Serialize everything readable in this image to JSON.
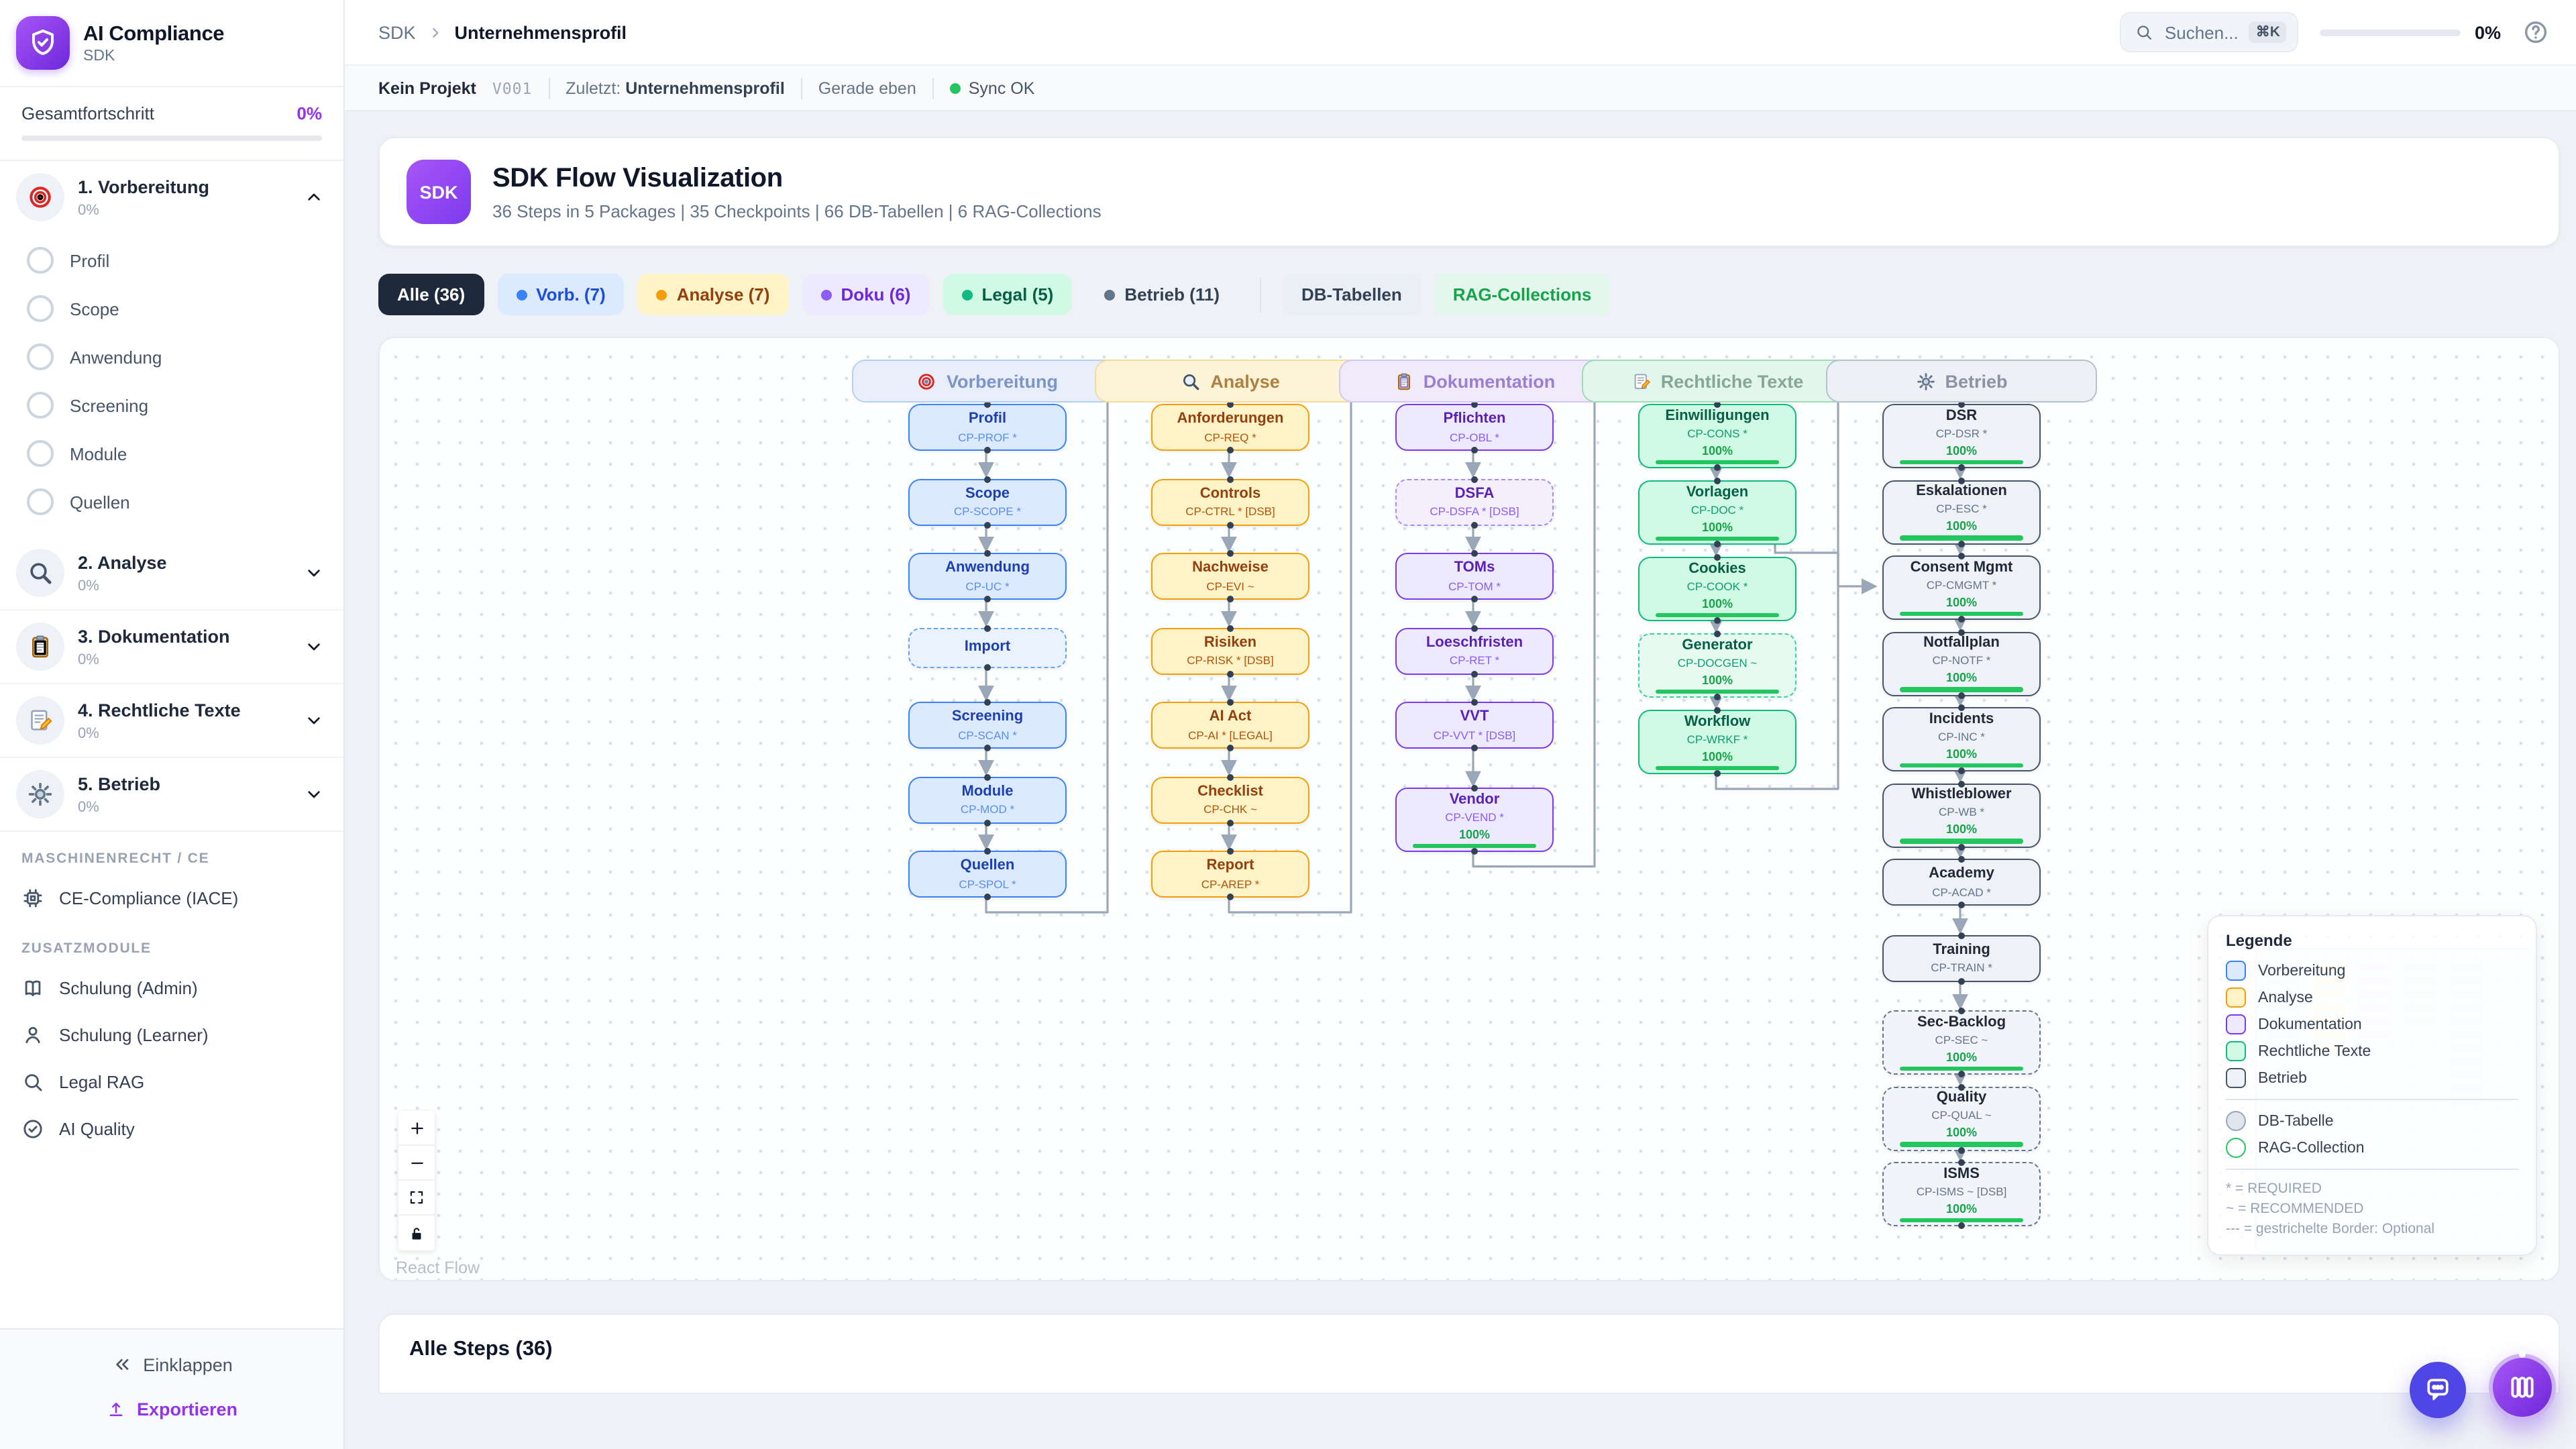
{
  "app": {
    "name": "AI Compliance",
    "subtitle": "SDK",
    "accent": "#7c3aed"
  },
  "topbar": {
    "breadcrumb": {
      "root": "SDK",
      "current": "Unternehmensprofil"
    },
    "search": {
      "placeholder": "Suchen...",
      "shortcut": "⌘K"
    },
    "progress": {
      "value": "0%"
    }
  },
  "statusbar": {
    "project": "Kein Projekt",
    "version": "V001",
    "last_label": "Zuletzt:",
    "last_value": "Unternehmensprofil",
    "ago": "Gerade eben",
    "sync_label": "Sync OK",
    "sync_color": "#22c55e"
  },
  "sidebar": {
    "overall": {
      "label": "Gesamtfortschritt",
      "value": "0%",
      "color": "#9333ea"
    },
    "sections": [
      {
        "icon": "target",
        "label": "1. Vorbereitung",
        "percent": "0%",
        "expanded": true,
        "items": [
          "Profil",
          "Scope",
          "Anwendung",
          "Screening",
          "Module",
          "Quellen"
        ]
      },
      {
        "icon": "magnifier-color",
        "label": "2. Analyse",
        "percent": "0%",
        "expanded": false
      },
      {
        "icon": "clipboard",
        "label": "3. Dokumentation",
        "percent": "0%",
        "expanded": false
      },
      {
        "icon": "memo",
        "label": "4. Rechtliche Texte",
        "percent": "0%",
        "expanded": false
      },
      {
        "icon": "gear",
        "label": "5. Betrieb",
        "percent": "0%",
        "expanded": false
      }
    ],
    "groups": [
      {
        "label": "MASCHINENRECHT / CE",
        "items": [
          {
            "icon": "cpu",
            "label": "CE-Compliance (IACE)"
          }
        ]
      },
      {
        "label": "ZUSATZMODULE",
        "items": [
          {
            "icon": "book",
            "label": "Schulung (Admin)"
          },
          {
            "icon": "person",
            "label": "Schulung (Learner)"
          },
          {
            "icon": "search",
            "label": "Legal RAG"
          },
          {
            "icon": "check-circle",
            "label": "AI Quality"
          }
        ]
      }
    ],
    "footer": {
      "collapse": "Einklappen",
      "export": "Exportieren"
    }
  },
  "header_card": {
    "badge": "SDK",
    "title": "SDK Flow Visualization",
    "subtitle": "36 Steps in 5 Packages | 35 Checkpoints | 66 DB-Tabellen | 6 RAG-Collections"
  },
  "filters": {
    "chips": [
      {
        "label": "Alle (36)",
        "solid": true,
        "bg": "#1e293b",
        "fg": "#ffffff"
      },
      {
        "label": "Vorb. (7)",
        "dot": "#3b82f6",
        "bg": "#dbeafe",
        "fg": "#1d4ed8"
      },
      {
        "label": "Analyse (7)",
        "dot": "#f59e0b",
        "bg": "#fef3c7",
        "fg": "#92400e"
      },
      {
        "label": "Doku (6)",
        "dot": "#8b5cf6",
        "bg": "#ede9fe",
        "fg": "#6d28d9"
      },
      {
        "label": "Legal (5)",
        "dot": "#10b981",
        "bg": "#d1fae5",
        "fg": "#065f46"
      },
      {
        "label": "Betrieb (11)",
        "dot": "#64748b",
        "bg": "#eef2f7",
        "fg": "#334155"
      }
    ],
    "extra": [
      {
        "label": "DB-Tabellen",
        "bg": "#eaeff5",
        "fg": "#334155"
      },
      {
        "label": "RAG-Collections",
        "bg": "#e3f7ec",
        "fg": "#16a34a"
      }
    ]
  },
  "flow": {
    "packages": [
      {
        "id": "vorb",
        "label": "Vorbereitung",
        "icon": "target",
        "hdr_bg": "#e8effb",
        "hdr_border": "#b9cff1",
        "hdr_fg": "#7b95c8",
        "bg": "#dbeafe",
        "border": "#3b82f6",
        "title_fg": "#1e40af",
        "code_fg": "#5b8def",
        "dash_bg": "#eaf2fe",
        "dash_border": "#60a5fa"
      },
      {
        "id": "analyse",
        "label": "Analyse",
        "icon": "magnifier-color",
        "hdr_bg": "#fdf3d6",
        "hdr_border": "#f1dc9e",
        "hdr_fg": "#ad8043",
        "bg": "#fef3c7",
        "border": "#f59e0b",
        "title_fg": "#92400e",
        "code_fg": "#b45309",
        "dash_bg": "#fefae8",
        "dash_border": "#fbbf24"
      },
      {
        "id": "doku",
        "label": "Dokumentation",
        "icon": "clipboard",
        "hdr_bg": "#f0eafb",
        "hdr_border": "#d6c6f2",
        "hdr_fg": "#9a7fd1",
        "bg": "#ede9fe",
        "border": "#7c3aed",
        "title_fg": "#5b21b6",
        "code_fg": "#8b5cf6",
        "dash_bg": "#f4effd",
        "dash_border": "#a78bfa"
      },
      {
        "id": "legal",
        "label": "Rechtliche Texte",
        "icon": "memo",
        "hdr_bg": "#e3f6ec",
        "hdr_border": "#9cdcb8",
        "hdr_fg": "#87a796",
        "bg": "#d1fae5",
        "border": "#10b981",
        "title_fg": "#065f46",
        "code_fg": "#0d9d72",
        "dash_bg": "#e7faf0",
        "dash_border": "#34d399"
      },
      {
        "id": "betrieb",
        "label": "Betrieb",
        "icon": "gear",
        "hdr_bg": "#edf0f4",
        "hdr_border": "#b7c1ce",
        "hdr_fg": "#8b94a3",
        "bg": "#eef2f7",
        "border": "#475569",
        "title_fg": "#1f2937",
        "code_fg": "#64748b",
        "dash_bg": "#f1f5f9",
        "dash_border": "#64748b"
      }
    ],
    "nodes": [
      {
        "col": 0,
        "row": 0,
        "label": "Profil",
        "code": "CP-PROF *"
      },
      {
        "col": 0,
        "row": 1,
        "label": "Scope",
        "code": "CP-SCOPE *"
      },
      {
        "col": 0,
        "row": 2,
        "label": "Anwendung",
        "code": "CP-UC *"
      },
      {
        "col": 0,
        "row": 3,
        "label": "Import",
        "code": "",
        "dashed": true
      },
      {
        "col": 0,
        "row": 4,
        "label": "Screening",
        "code": "CP-SCAN *"
      },
      {
        "col": 0,
        "row": 5,
        "label": "Module",
        "code": "CP-MOD *"
      },
      {
        "col": 0,
        "row": 6,
        "label": "Quellen",
        "code": "CP-SPOL *"
      },
      {
        "col": 1,
        "row": 0,
        "label": "Anforderungen",
        "code": "CP-REQ *"
      },
      {
        "col": 1,
        "row": 1,
        "label": "Controls",
        "code": "CP-CTRL * [DSB]"
      },
      {
        "col": 1,
        "row": 2,
        "label": "Nachweise",
        "code": "CP-EVI ~"
      },
      {
        "col": 1,
        "row": 3,
        "label": "Risiken",
        "code": "CP-RISK * [DSB]"
      },
      {
        "col": 1,
        "row": 4,
        "label": "AI Act",
        "code": "CP-AI * [LEGAL]"
      },
      {
        "col": 1,
        "row": 5,
        "label": "Checklist",
        "code": "CP-CHK ~"
      },
      {
        "col": 1,
        "row": 6,
        "label": "Report",
        "code": "CP-AREP *"
      },
      {
        "col": 2,
        "row": 0,
        "label": "Pflichten",
        "code": "CP-OBL *"
      },
      {
        "col": 2,
        "row": 1,
        "label": "DSFA",
        "code": "CP-DSFA * [DSB]",
        "dashed": true
      },
      {
        "col": 2,
        "row": 2,
        "label": "TOMs",
        "code": "CP-TOM *"
      },
      {
        "col": 2,
        "row": 3,
        "label": "Loeschfristen",
        "code": "CP-RET *"
      },
      {
        "col": 2,
        "row": 4,
        "label": "VVT",
        "code": "CP-VVT * [DSB]"
      },
      {
        "col": 2,
        "row": 5.15,
        "label": "Vendor",
        "code": "CP-VEND *",
        "progress": "100%"
      },
      {
        "col": 3,
        "row": 0,
        "label": "Einwilligungen",
        "code": "CP-CONS *",
        "progress": "100%"
      },
      {
        "col": 3,
        "row": 1,
        "label": "Vorlagen",
        "code": "CP-DOC *",
        "progress": "100%"
      },
      {
        "col": 3,
        "row": 2,
        "label": "Cookies",
        "code": "CP-COOK *",
        "progress": "100%"
      },
      {
        "col": 3,
        "row": 3,
        "label": "Generator",
        "code": "CP-DOCGEN ~",
        "progress": "100%",
        "dashed": true
      },
      {
        "col": 3,
        "row": 4,
        "label": "Workflow",
        "code": "CP-WRKF *",
        "progress": "100%"
      },
      {
        "col": 4,
        "row": 0,
        "label": "DSR",
        "code": "CP-DSR *",
        "progress": "100%"
      },
      {
        "col": 4,
        "row": 1,
        "label": "Eskalationen",
        "code": "CP-ESC *",
        "progress": "100%"
      },
      {
        "col": 4,
        "row": 2,
        "label": "Consent Mgmt",
        "code": "CP-CMGMT *",
        "progress": "100%"
      },
      {
        "col": 4,
        "row": 3,
        "label": "Notfallplan",
        "code": "CP-NOTF *",
        "progress": "100%"
      },
      {
        "col": 4,
        "row": 4,
        "label": "Incidents",
        "code": "CP-INC *",
        "progress": "100%"
      },
      {
        "col": 4,
        "row": 5,
        "label": "Whistleblower",
        "code": "CP-WB *",
        "progress": "100%"
      },
      {
        "col": 4,
        "row": 6,
        "label": "Academy",
        "code": "CP-ACAD *"
      },
      {
        "col": 4,
        "row": 7,
        "label": "Training",
        "code": "CP-TRAIN *"
      },
      {
        "col": 4,
        "row": 8,
        "label": "Sec-Backlog",
        "code": "CP-SEC ~",
        "progress": "100%",
        "dashed": true
      },
      {
        "col": 4,
        "row": 9,
        "label": "Quality",
        "code": "CP-QUAL ~",
        "progress": "100%",
        "dashed": true
      },
      {
        "col": 4,
        "row": 10,
        "label": "ISMS",
        "code": "CP-ISMS ~ [DSB]",
        "progress": "100%",
        "dashed": true
      }
    ],
    "progress_color": "#22c55e",
    "edge_color": "#9aa7b9",
    "legend": {
      "title": "Legende",
      "shapes": [
        {
          "label": "DB-Tabelle",
          "fill": "#dfe5ec",
          "border": "#9aa6b5"
        },
        {
          "label": "RAG-Collection",
          "fill": "#ffffff",
          "border": "#22c55e"
        }
      ],
      "notes": [
        "* = REQUIRED",
        "~ = RECOMMENDED",
        "--- = gestrichelte Border: Optional"
      ]
    },
    "attribution": "React Flow"
  },
  "steps": {
    "title": "Alle Steps (36)"
  }
}
